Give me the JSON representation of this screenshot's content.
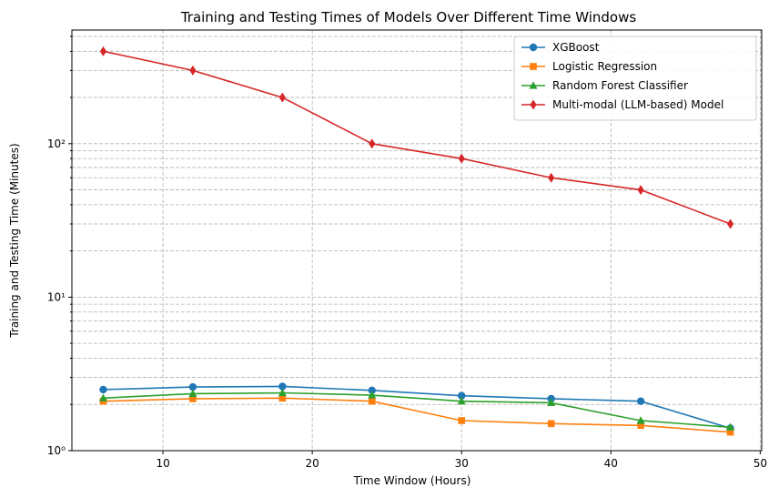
{
  "chart_data": {
    "type": "line",
    "title": "Training and Testing Times of Models Over Different Time Windows",
    "xlabel": "Time Window (Hours)",
    "ylabel": "Training and Testing Time (Minutes)",
    "x": [
      6,
      12,
      18,
      24,
      30,
      36,
      42,
      48
    ],
    "xlim": [
      3.9,
      50.1
    ],
    "ylim": [
      1.0,
      550
    ],
    "yscale": "log",
    "grid": true,
    "legend_position": "top-right",
    "x_ticks": [
      10,
      20,
      30,
      40,
      50
    ],
    "x_tick_labels": [
      "10",
      "20",
      "30",
      "40",
      "50"
    ],
    "y_ticks": [
      1,
      10,
      100
    ],
    "y_tick_labels": [
      "10⁰",
      "10¹",
      "10²"
    ],
    "series": [
      {
        "name": "XGBoost",
        "color": "#1f77b4",
        "marker": "circle",
        "values": [
          2.5,
          2.6,
          2.62,
          2.47,
          2.28,
          2.18,
          2.1,
          1.4
        ]
      },
      {
        "name": "Logistic Regression",
        "color": "#ff7f0e",
        "marker": "square",
        "values": [
          2.1,
          2.18,
          2.2,
          2.1,
          1.57,
          1.5,
          1.46,
          1.32
        ]
      },
      {
        "name": "Random Forest Classifier",
        "color": "#2ca02c",
        "marker": "triangle",
        "values": [
          2.2,
          2.35,
          2.38,
          2.3,
          2.1,
          2.05,
          1.57,
          1.42
        ]
      },
      {
        "name": "Multi-modal (LLM-based) Model",
        "color": "#d62728",
        "marker": "diamond",
        "values": [
          400,
          300,
          200,
          100,
          80,
          60,
          50,
          30
        ]
      }
    ]
  }
}
